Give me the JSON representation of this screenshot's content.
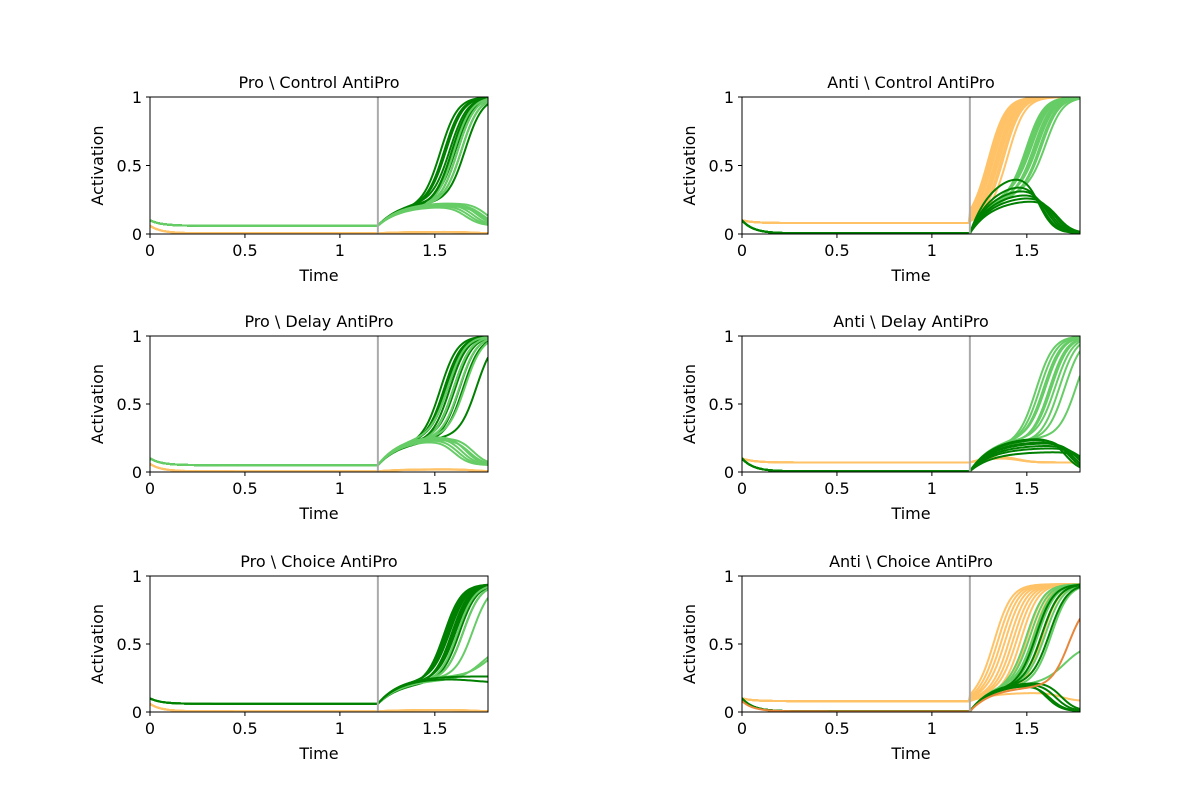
{
  "colors": {
    "dark_green": "#008000",
    "light_green": "#66cc66",
    "orange": "#ffc266",
    "dark_orange": "#e8863a",
    "cue_line": "#aaaaaa"
  },
  "chart_data": [
    {
      "type": "line",
      "title": "Pro \\ Control  AntiPro",
      "xlabel": "Time",
      "ylabel": "Activation",
      "xlim": [
        0,
        1.78
      ],
      "ylim": [
        0,
        1
      ],
      "xticks": [
        0,
        0.5,
        1,
        1.5
      ],
      "xtick_labels": [
        "0",
        "0.5",
        "1",
        "1.5"
      ],
      "yticks": [
        0,
        0.5,
        1
      ],
      "ytick_labels": [
        "0",
        "0.5",
        "1"
      ],
      "cue_time": 1.2,
      "grid": false,
      "legend": "none",
      "series": [
        {
          "color": "dark_green",
          "start": 0.1,
          "baseline": 0.06,
          "bump": 0.23,
          "fates": [
            1,
            1,
            1,
            1,
            1,
            1,
            1,
            1,
            1,
            1
          ],
          "t_cross": [
            1.53,
            1.55,
            1.56,
            1.58,
            1.59,
            1.6,
            1.61,
            1.62,
            1.64,
            1.66
          ]
        },
        {
          "color": "light_green",
          "start": 0.1,
          "baseline": 0.06,
          "bump": 0.22,
          "fates": [
            0,
            0,
            0,
            0,
            0,
            0,
            0,
            1,
            1,
            1
          ],
          "t_cross": [
            1.66,
            1.68,
            1.7,
            1.72,
            1.74,
            1.75,
            1.77,
            1.6,
            1.62,
            1.64
          ]
        },
        {
          "color": "orange",
          "start": 0.06,
          "baseline": 0.005,
          "bump": 0.015,
          "fates": [
            0,
            0,
            0,
            0,
            0,
            0
          ],
          "t_cross": [
            1.7,
            1.7,
            1.7,
            1.7,
            1.7,
            1.7
          ]
        }
      ]
    },
    {
      "type": "line",
      "title": "Anti \\ Control  AntiPro",
      "xlabel": "Time",
      "ylabel": "Activation",
      "xlim": [
        0,
        1.78
      ],
      "ylim": [
        0,
        1
      ],
      "xticks": [
        0,
        0.5,
        1,
        1.5
      ],
      "xtick_labels": [
        "0",
        "0.5",
        "1",
        "1.5"
      ],
      "yticks": [
        0,
        0.5,
        1
      ],
      "ytick_labels": [
        "0",
        "0.5",
        "1"
      ],
      "cue_time": 1.2,
      "grid": false,
      "legend": "none",
      "series": [
        {
          "color": "orange",
          "start": 0.1,
          "baseline": 0.08,
          "bump": 0.15,
          "fates": [
            1,
            1,
            1,
            1,
            1,
            1,
            1,
            1,
            1,
            1
          ],
          "t_cross": [
            1.3,
            1.31,
            1.32,
            1.33,
            1.34,
            1.35,
            1.36,
            1.37,
            1.38,
            1.4
          ]
        },
        {
          "color": "light_green",
          "start": 0.1,
          "baseline": 0.005,
          "bump": 0.32,
          "fates": [
            1,
            1,
            1,
            1,
            1,
            1,
            1,
            1,
            1,
            1
          ],
          "t_cross": [
            1.5,
            1.51,
            1.52,
            1.53,
            1.54,
            1.55,
            1.56,
            1.57,
            1.58,
            1.6
          ]
        },
        {
          "color": "dark_green",
          "start": 0.1,
          "baseline": 0.005,
          "bump": 0.3,
          "fates": [
            0,
            0,
            0,
            0,
            0,
            0
          ],
          "t_cross": [
            1.56,
            1.58,
            1.6,
            1.62,
            1.64,
            1.66
          ],
          "peaks": [
            0.48,
            0.4,
            0.36,
            0.32,
            0.29,
            0.26
          ]
        }
      ]
    },
    {
      "type": "line",
      "title": "Pro \\ Delay  AntiPro",
      "xlabel": "Time",
      "ylabel": "Activation",
      "xlim": [
        0,
        1.78
      ],
      "ylim": [
        0,
        1
      ],
      "xticks": [
        0,
        0.5,
        1,
        1.5
      ],
      "xtick_labels": [
        "0",
        "0.5",
        "1",
        "1.5"
      ],
      "yticks": [
        0,
        0.5,
        1
      ],
      "ytick_labels": [
        "0",
        "0.5",
        "1"
      ],
      "cue_time": 1.2,
      "grid": false,
      "legend": "none",
      "series": [
        {
          "color": "dark_green",
          "start": 0.1,
          "baseline": 0.05,
          "bump": 0.25,
          "fates": [
            1,
            1,
            1,
            1,
            1,
            1,
            1,
            1,
            1,
            1
          ],
          "t_cross": [
            1.53,
            1.55,
            1.56,
            1.57,
            1.58,
            1.6,
            1.61,
            1.63,
            1.65,
            1.72
          ]
        },
        {
          "color": "light_green",
          "start": 0.1,
          "baseline": 0.05,
          "bump": 0.26,
          "fates": [
            0,
            0,
            0,
            0,
            0,
            0,
            1,
            1,
            1,
            1
          ],
          "t_cross": [
            1.6,
            1.62,
            1.64,
            1.66,
            1.68,
            1.7,
            1.57,
            1.6,
            1.63,
            1.66
          ]
        },
        {
          "color": "orange",
          "start": 0.06,
          "baseline": 0.005,
          "bump": 0.02,
          "fates": [
            0,
            0,
            0,
            0,
            0
          ],
          "t_cross": [
            1.7,
            1.7,
            1.7,
            1.7,
            1.7
          ]
        }
      ]
    },
    {
      "type": "line",
      "title": "Anti \\ Delay  AntiPro",
      "xlabel": "Time",
      "ylabel": "Activation",
      "xlim": [
        0,
        1.78
      ],
      "ylim": [
        0,
        1
      ],
      "xticks": [
        0,
        0.5,
        1,
        1.5
      ],
      "xtick_labels": [
        "0",
        "0.5",
        "1",
        "1.5"
      ],
      "yticks": [
        0,
        0.5,
        1
      ],
      "ytick_labels": [
        "0",
        "0.5",
        "1"
      ],
      "cue_time": 1.2,
      "grid": false,
      "legend": "none",
      "series": [
        {
          "color": "orange",
          "start": 0.1,
          "baseline": 0.07,
          "bump": 0.12,
          "fates": [
            0,
            0,
            0,
            0,
            0,
            0
          ],
          "t_cross": [
            1.45,
            1.45,
            1.45,
            1.45,
            1.45,
            1.45
          ]
        },
        {
          "color": "light_green",
          "start": 0.1,
          "baseline": 0.005,
          "bump": 0.25,
          "fates": [
            1,
            1,
            1,
            1,
            1,
            1,
            1,
            1,
            1,
            1
          ],
          "t_cross": [
            1.55,
            1.57,
            1.59,
            1.6,
            1.62,
            1.63,
            1.65,
            1.67,
            1.7,
            1.76
          ]
        },
        {
          "color": "dark_green",
          "start": 0.1,
          "baseline": 0.005,
          "bump": 0.25,
          "fates": [
            0,
            0,
            0,
            0,
            0,
            0,
            0
          ],
          "t_cross": [
            1.7,
            1.72,
            1.74,
            1.76,
            1.78,
            1.8,
            1.82
          ],
          "peaks": [
            0.26,
            0.25,
            0.23,
            0.22,
            0.2,
            0.18,
            0.15
          ]
        }
      ]
    },
    {
      "type": "line",
      "title": "Pro \\ Choice  AntiPro",
      "xlabel": "Time",
      "ylabel": "Activation",
      "xlim": [
        0,
        1.78
      ],
      "ylim": [
        0,
        1
      ],
      "xticks": [
        0,
        0.5,
        1,
        1.5
      ],
      "xtick_labels": [
        "0",
        "0.5",
        "1",
        "1.5"
      ],
      "yticks": [
        0,
        0.5,
        1
      ],
      "ytick_labels": [
        "0",
        "0.5",
        "1"
      ],
      "cue_time": 1.2,
      "grid": false,
      "legend": "none",
      "series": [
        {
          "color": "dark_green",
          "start": 0.1,
          "baseline": 0.06,
          "bump": 0.24,
          "top": 0.94,
          "fates": [
            1,
            1,
            1,
            1,
            1,
            1,
            1,
            1,
            1,
            1
          ],
          "t_cross": [
            1.55,
            1.56,
            1.57,
            1.58,
            1.59,
            1.6,
            1.61,
            1.62,
            1.63,
            1.65
          ]
        },
        {
          "color": "light_green",
          "start": 0.1,
          "baseline": 0.06,
          "bump": 0.25,
          "top": 0.94,
          "fates": [
            1,
            1,
            1,
            2,
            2
          ],
          "t_cross": [
            1.62,
            1.65,
            1.7,
            1.78,
            1.75
          ]
        },
        {
          "color": "dark_green",
          "start": 0.1,
          "baseline": 0.06,
          "bump": 0.27,
          "fates": [
            3,
            3
          ],
          "t_cross": [
            1.7,
            1.7
          ],
          "ends": [
            0.21,
            0.26
          ]
        },
        {
          "color": "orange",
          "start": 0.06,
          "baseline": 0.005,
          "bump": 0.015,
          "fates": [
            0,
            0,
            0,
            0,
            0
          ],
          "t_cross": [
            1.7,
            1.7,
            1.7,
            1.7,
            1.7
          ]
        }
      ]
    },
    {
      "type": "line",
      "title": "Anti \\ Choice  AntiPro",
      "xlabel": "Time",
      "ylabel": "Activation",
      "xlim": [
        0,
        1.78
      ],
      "ylim": [
        0,
        1
      ],
      "xticks": [
        0,
        0.5,
        1,
        1.5
      ],
      "xtick_labels": [
        "0",
        "0.5",
        "1",
        "1.5"
      ],
      "yticks": [
        0,
        0.5,
        1
      ],
      "ytick_labels": [
        "0",
        "0.5",
        "1"
      ],
      "cue_time": 1.2,
      "grid": false,
      "legend": "none",
      "series": [
        {
          "color": "orange",
          "start": 0.1,
          "baseline": 0.08,
          "bump": 0.15,
          "top": 0.94,
          "fates": [
            1,
            1,
            1,
            1,
            1,
            1,
            1,
            1,
            1,
            1,
            1,
            0
          ],
          "t_cross": [
            1.33,
            1.35,
            1.37,
            1.39,
            1.41,
            1.43,
            1.45,
            1.47,
            1.5,
            1.53,
            1.58,
            1.68
          ]
        },
        {
          "color": "light_green",
          "start": 0.1,
          "baseline": 0.005,
          "bump": 0.22,
          "top": 0.94,
          "fates": [
            1,
            1,
            1,
            1,
            1,
            1,
            1,
            1,
            2
          ],
          "t_cross": [
            1.5,
            1.52,
            1.54,
            1.55,
            1.56,
            1.58,
            1.6,
            1.63,
            1.7
          ]
        },
        {
          "color": "dark_green",
          "start": 0.1,
          "baseline": 0.005,
          "bump": 0.22,
          "top": 0.94,
          "fates": [
            1,
            1,
            1,
            0,
            0,
            0,
            0
          ],
          "t_cross": [
            1.55,
            1.58,
            1.62,
            1.6,
            1.62,
            1.65,
            1.68
          ]
        },
        {
          "color": "dark_orange",
          "start": 0.08,
          "baseline": 0.005,
          "bump": 0.2,
          "fates": [
            1
          ],
          "t_cross": [
            1.72
          ],
          "top": 0.82
        }
      ]
    }
  ]
}
